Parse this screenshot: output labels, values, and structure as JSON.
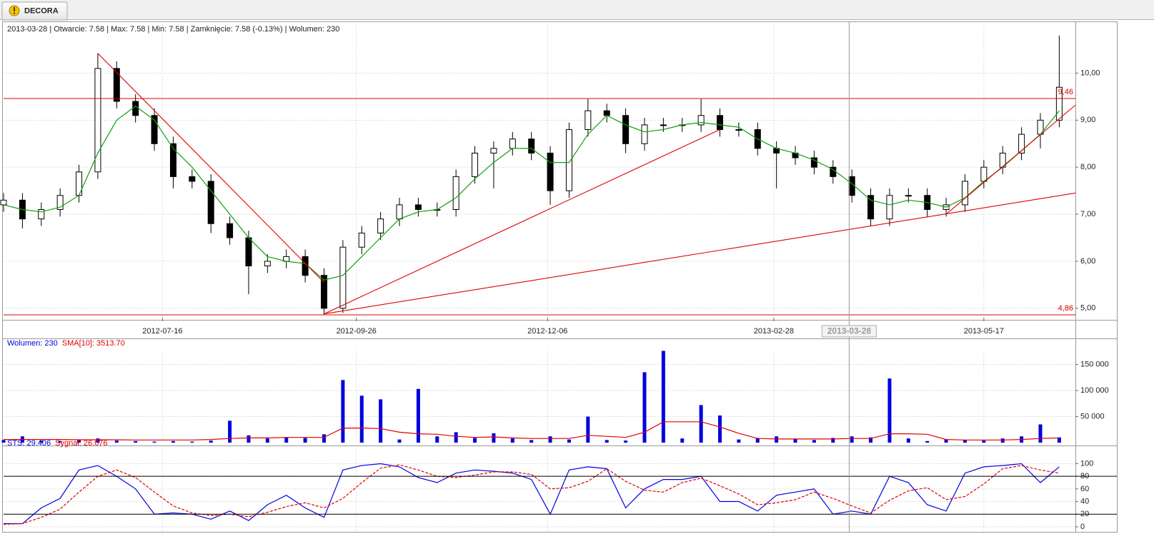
{
  "tab": "DECORA",
  "chart_data": [
    {
      "type": "candlestick",
      "info": "2013-03-28 | Otwarcie: 7.58 | Max: 7.58 | Min: 7.58 | Zamknięcie: 7.58 (-0.13%)  | Wolumen: 230",
      "x": [
        "2012-05-18",
        "2012-05-25",
        "2012-06-01",
        "2012-06-08",
        "2012-06-15",
        "2012-06-22",
        "2012-06-29",
        "2012-07-06",
        "2012-07-13",
        "2012-07-20",
        "2012-07-27",
        "2012-08-03",
        "2012-08-10",
        "2012-08-17",
        "2012-08-24",
        "2012-08-31",
        "2012-09-07",
        "2012-09-14",
        "2012-09-21",
        "2012-09-28",
        "2012-10-05",
        "2012-10-12",
        "2012-10-19",
        "2012-10-26",
        "2012-11-02",
        "2012-11-09",
        "2012-11-16",
        "2012-11-23",
        "2012-11-30",
        "2012-12-07",
        "2012-12-14",
        "2012-12-21",
        "2012-12-28",
        "2013-01-04",
        "2013-01-11",
        "2013-01-18",
        "2013-01-25",
        "2013-02-01",
        "2013-02-08",
        "2013-02-15",
        "2013-02-22",
        "2013-03-01",
        "2013-03-08",
        "2013-03-15",
        "2013-03-22",
        "2013-03-29",
        "2013-04-05",
        "2013-04-12",
        "2013-04-19",
        "2013-04-26",
        "2013-05-03",
        "2013-05-10",
        "2013-05-17",
        "2013-05-24",
        "2013-05-31",
        "2013-06-07",
        "2013-06-14"
      ],
      "open": [
        7.2,
        7.3,
        6.9,
        7.1,
        7.4,
        7.9,
        10.1,
        9.4,
        9.1,
        8.5,
        7.8,
        7.7,
        6.8,
        6.5,
        5.9,
        6.0,
        6.1,
        5.7,
        5.0,
        6.3,
        6.6,
        6.9,
        7.2,
        7.1,
        7.1,
        7.8,
        8.3,
        8.4,
        8.6,
        8.3,
        7.5,
        8.8,
        9.2,
        9.1,
        8.5,
        8.9,
        8.9,
        8.9,
        9.1,
        8.8,
        8.8,
        8.4,
        8.3,
        8.2,
        8.0,
        7.8,
        7.4,
        6.9,
        7.4,
        7.4,
        7.1,
        7.2,
        7.7,
        8.0,
        8.3,
        8.7,
        9.0
      ],
      "high": [
        7.45,
        7.45,
        7.25,
        7.55,
        8.05,
        10.42,
        10.25,
        9.55,
        9.25,
        8.65,
        7.95,
        7.85,
        6.95,
        6.65,
        6.15,
        6.25,
        6.25,
        5.85,
        6.45,
        6.75,
        7.05,
        7.35,
        7.35,
        7.25,
        7.95,
        8.45,
        8.55,
        8.75,
        8.75,
        8.45,
        8.95,
        9.45,
        9.35,
        9.25,
        9.05,
        9.05,
        9.05,
        9.45,
        9.25,
        8.95,
        8.95,
        8.55,
        8.45,
        8.35,
        8.15,
        7.95,
        7.55,
        7.55,
        7.55,
        7.55,
        7.35,
        7.85,
        8.15,
        8.45,
        8.85,
        9.15,
        10.8
      ],
      "low": [
        7.05,
        6.7,
        6.75,
        6.95,
        7.25,
        7.75,
        9.25,
        8.95,
        8.35,
        7.55,
        7.55,
        6.6,
        6.35,
        5.3,
        5.75,
        5.85,
        5.55,
        4.86,
        4.9,
        6.15,
        6.45,
        6.75,
        6.95,
        6.95,
        6.95,
        7.65,
        7.55,
        8.25,
        8.15,
        7.2,
        7.35,
        8.65,
        8.95,
        8.3,
        8.35,
        8.75,
        8.75,
        8.75,
        8.65,
        8.65,
        8.25,
        7.55,
        8.05,
        7.85,
        7.65,
        7.25,
        6.75,
        6.75,
        7.25,
        6.95,
        6.95,
        7.05,
        7.55,
        7.85,
        8.15,
        8.4,
        8.85
      ],
      "close": [
        7.3,
        6.9,
        7.1,
        7.4,
        7.9,
        10.1,
        9.4,
        9.1,
        8.5,
        7.8,
        7.7,
        6.8,
        6.5,
        5.9,
        6.0,
        6.1,
        5.7,
        5.0,
        6.3,
        6.6,
        6.9,
        7.2,
        7.1,
        7.1,
        7.8,
        8.3,
        8.4,
        8.6,
        8.3,
        7.5,
        8.8,
        9.2,
        9.1,
        8.5,
        8.9,
        8.9,
        8.9,
        9.1,
        8.8,
        8.8,
        8.4,
        8.3,
        8.2,
        8.0,
        7.8,
        7.4,
        6.9,
        7.4,
        7.4,
        7.1,
        7.2,
        7.7,
        8.0,
        8.3,
        8.7,
        9.0,
        9.7
      ],
      "overlay": {
        "color": "#10a010",
        "values": [
          7.2,
          7.1,
          7.05,
          7.15,
          7.4,
          8.3,
          9.0,
          9.3,
          9.0,
          8.4,
          8.0,
          7.5,
          7.0,
          6.5,
          6.1,
          6.0,
          5.95,
          5.6,
          5.7,
          6.1,
          6.5,
          6.9,
          7.05,
          7.1,
          7.35,
          7.75,
          8.1,
          8.4,
          8.4,
          8.1,
          8.1,
          8.7,
          9.1,
          8.9,
          8.75,
          8.8,
          8.9,
          8.95,
          8.9,
          8.85,
          8.6,
          8.4,
          8.3,
          8.15,
          7.95,
          7.65,
          7.3,
          7.2,
          7.3,
          7.25,
          7.15,
          7.35,
          7.7,
          8.0,
          8.35,
          8.7,
          9.2
        ]
      },
      "xlim": [
        "2012-05-18",
        "2013-06-20"
      ],
      "xticks": [
        "2012-07-16",
        "2012-09-26",
        "2012-12-06",
        "2013-02-28",
        "2013-05-17"
      ],
      "crosshair": "2013-03-28",
      "ylim": [
        4.8,
        11.1
      ],
      "yticks": [
        {
          "value": 5,
          "label": "5,00"
        },
        {
          "value": 6,
          "label": "6,00"
        },
        {
          "value": 7,
          "label": "7,00"
        },
        {
          "value": 8,
          "label": "8,00"
        },
        {
          "value": 9,
          "label": "9,00"
        },
        {
          "value": 10,
          "label": "10,00"
        }
      ],
      "grid": true,
      "line_color": "#e00000",
      "hlines": [
        {
          "value": 9.46,
          "label": "9,46"
        },
        {
          "value": 4.86,
          "label": "4,86"
        }
      ],
      "trendlines": [
        {
          "x": [
            "2012-06-22",
            "2012-09-14"
          ],
          "y": [
            10.42,
            5.55
          ]
        },
        {
          "x": [
            "2012-09-14",
            "2013-02-08"
          ],
          "y": [
            4.88,
            8.8
          ]
        },
        {
          "x": [
            "2012-09-14",
            "2013-06-20"
          ],
          "y": [
            4.88,
            7.45
          ]
        },
        {
          "x": [
            "2013-05-03",
            "2013-06-20"
          ],
          "y": [
            7.0,
            9.32
          ]
        }
      ]
    },
    {
      "type": "bar",
      "x": [
        "2012-05-18",
        "2012-05-25",
        "2012-06-01",
        "2012-06-08",
        "2012-06-15",
        "2012-06-22",
        "2012-06-29",
        "2012-07-06",
        "2012-07-13",
        "2012-07-20",
        "2012-07-27",
        "2012-08-03",
        "2012-08-10",
        "2012-08-17",
        "2012-08-24",
        "2012-08-31",
        "2012-09-07",
        "2012-09-14",
        "2012-09-21",
        "2012-09-28",
        "2012-10-05",
        "2012-10-12",
        "2012-10-19",
        "2012-10-26",
        "2012-11-02",
        "2012-11-09",
        "2012-11-16",
        "2012-11-23",
        "2012-11-30",
        "2012-12-07",
        "2012-12-14",
        "2012-12-21",
        "2012-12-28",
        "2013-01-04",
        "2013-01-11",
        "2013-01-18",
        "2013-01-25",
        "2013-02-01",
        "2013-02-08",
        "2013-02-15",
        "2013-02-22",
        "2013-03-01",
        "2013-03-08",
        "2013-03-15",
        "2013-03-22",
        "2013-03-29",
        "2013-04-05",
        "2013-04-12",
        "2013-04-19",
        "2013-04-26",
        "2013-05-03",
        "2013-05-10",
        "2013-05-17",
        "2013-05-24",
        "2013-05-31",
        "2013-06-07",
        "2013-06-14"
      ],
      "series": [
        {
          "name": "Wolumen: 230",
          "color": "#0000e0",
          "kind": "bar",
          "values": [
            5000,
            12000,
            4000,
            3000,
            5000,
            8000,
            4000,
            3000,
            2000,
            3000,
            2000,
            4000,
            42000,
            14000,
            8000,
            10000,
            9000,
            16000,
            120000,
            90000,
            83000,
            6000,
            103000,
            12000,
            20000,
            9000,
            18000,
            8000,
            5000,
            12000,
            6000,
            50000,
            5000,
            4000,
            135000,
            176000,
            8000,
            72000,
            52000,
            6000,
            9000,
            12000,
            7000,
            5000,
            9000,
            12000,
            10000,
            123000,
            8000,
            3000,
            6000,
            5000,
            4000,
            8000,
            12000,
            35000,
            10000
          ]
        },
        {
          "name": "SMA[10]: 3513.70",
          "color": "#e00000",
          "kind": "line",
          "values": [
            6000,
            6000,
            6000,
            6000,
            5500,
            5500,
            5500,
            5000,
            5000,
            5000,
            5000,
            6000,
            8000,
            9000,
            9000,
            10000,
            10000,
            10000,
            28000,
            28000,
            27000,
            20000,
            17000,
            16000,
            12000,
            10000,
            11000,
            9000,
            8000,
            8000,
            8000,
            14000,
            12000,
            10000,
            20000,
            40000,
            40000,
            40000,
            30000,
            18000,
            8000,
            7000,
            7000,
            7000,
            7000,
            8000,
            8000,
            17000,
            17000,
            16000,
            6000,
            5000,
            5000,
            5000,
            6000,
            8000,
            9000
          ]
        }
      ],
      "ylim": [
        0,
        178000
      ],
      "yticks": [
        {
          "value": 50000,
          "label": "50 000"
        },
        {
          "value": 100000,
          "label": "100 000"
        },
        {
          "value": 150000,
          "label": "150 000"
        }
      ],
      "grid": true
    },
    {
      "type": "line",
      "x": [
        "2012-05-18",
        "2012-05-25",
        "2012-06-01",
        "2012-06-08",
        "2012-06-15",
        "2012-06-22",
        "2012-06-29",
        "2012-07-06",
        "2012-07-13",
        "2012-07-20",
        "2012-07-27",
        "2012-08-03",
        "2012-08-10",
        "2012-08-17",
        "2012-08-24",
        "2012-08-31",
        "2012-09-07",
        "2012-09-14",
        "2012-09-21",
        "2012-09-28",
        "2012-10-05",
        "2012-10-12",
        "2012-10-19",
        "2012-10-26",
        "2012-11-02",
        "2012-11-09",
        "2012-11-16",
        "2012-11-23",
        "2012-11-30",
        "2012-12-07",
        "2012-12-14",
        "2012-12-21",
        "2012-12-28",
        "2013-01-04",
        "2013-01-11",
        "2013-01-18",
        "2013-01-25",
        "2013-02-01",
        "2013-02-08",
        "2013-02-15",
        "2013-02-22",
        "2013-03-01",
        "2013-03-08",
        "2013-03-15",
        "2013-03-22",
        "2013-03-29",
        "2013-04-05",
        "2013-04-12",
        "2013-04-19",
        "2013-04-26",
        "2013-05-03",
        "2013-05-10",
        "2013-05-17",
        "2013-05-24",
        "2013-05-31",
        "2013-06-07",
        "2013-06-14"
      ],
      "series": [
        {
          "name": "STS: 29.406",
          "color": "#0000e0",
          "kind": "line",
          "values": [
            5,
            5,
            30,
            45,
            90,
            97,
            80,
            60,
            20,
            22,
            20,
            12,
            25,
            10,
            35,
            50,
            30,
            15,
            90,
            97,
            100,
            95,
            78,
            70,
            85,
            90,
            88,
            85,
            75,
            20,
            90,
            95,
            92,
            30,
            60,
            75,
            75,
            80,
            40,
            40,
            25,
            50,
            55,
            60,
            20,
            25,
            20,
            80,
            70,
            35,
            25,
            85,
            95,
            97,
            100,
            70,
            95
          ]
        },
        {
          "name": "Sygnał: 26.076",
          "color": "#e00000",
          "kind": "line",
          "dashed": true,
          "values": [
            4,
            5,
            15,
            28,
            55,
            80,
            90,
            78,
            55,
            33,
            22,
            18,
            20,
            16,
            23,
            32,
            38,
            30,
            45,
            70,
            93,
            98,
            90,
            80,
            78,
            82,
            87,
            87,
            83,
            60,
            62,
            72,
            92,
            72,
            58,
            55,
            70,
            77,
            65,
            52,
            35,
            38,
            43,
            55,
            45,
            33,
            22,
            42,
            57,
            62,
            43,
            48,
            68,
            92,
            97,
            90,
            85
          ]
        }
      ],
      "ylim": [
        -8,
        122
      ],
      "yticks": [
        0,
        20,
        40,
        60,
        80,
        100
      ],
      "hlines": [
        80,
        20
      ],
      "grid": true
    }
  ]
}
